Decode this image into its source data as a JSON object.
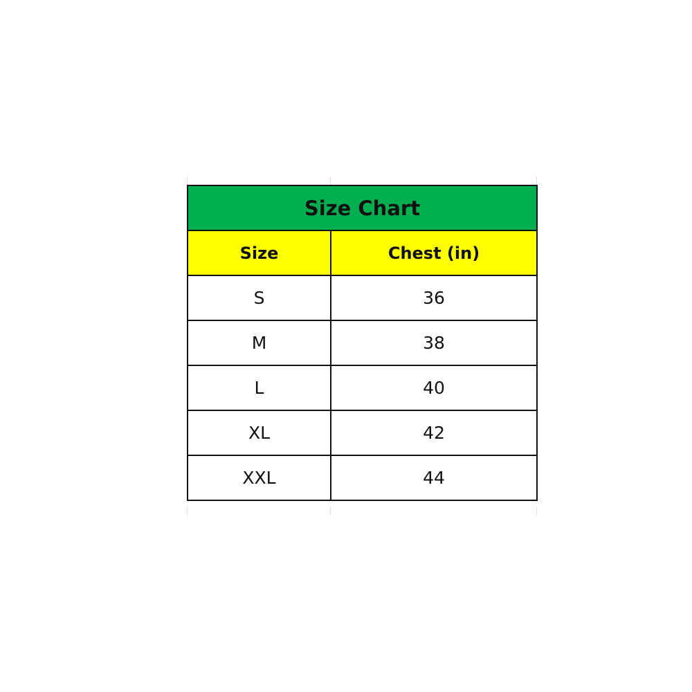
{
  "title": "Size Chart",
  "columns": [
    "Size",
    "Chest (in)"
  ],
  "rows": [
    [
      "S",
      "36"
    ],
    [
      "M",
      "38"
    ],
    [
      "L",
      "40"
    ],
    [
      "XL",
      "42"
    ],
    [
      "XXL",
      "44"
    ]
  ],
  "colors": {
    "title_bg": "#00B050",
    "header_bg": "#FFFF00",
    "border": "#111111"
  }
}
